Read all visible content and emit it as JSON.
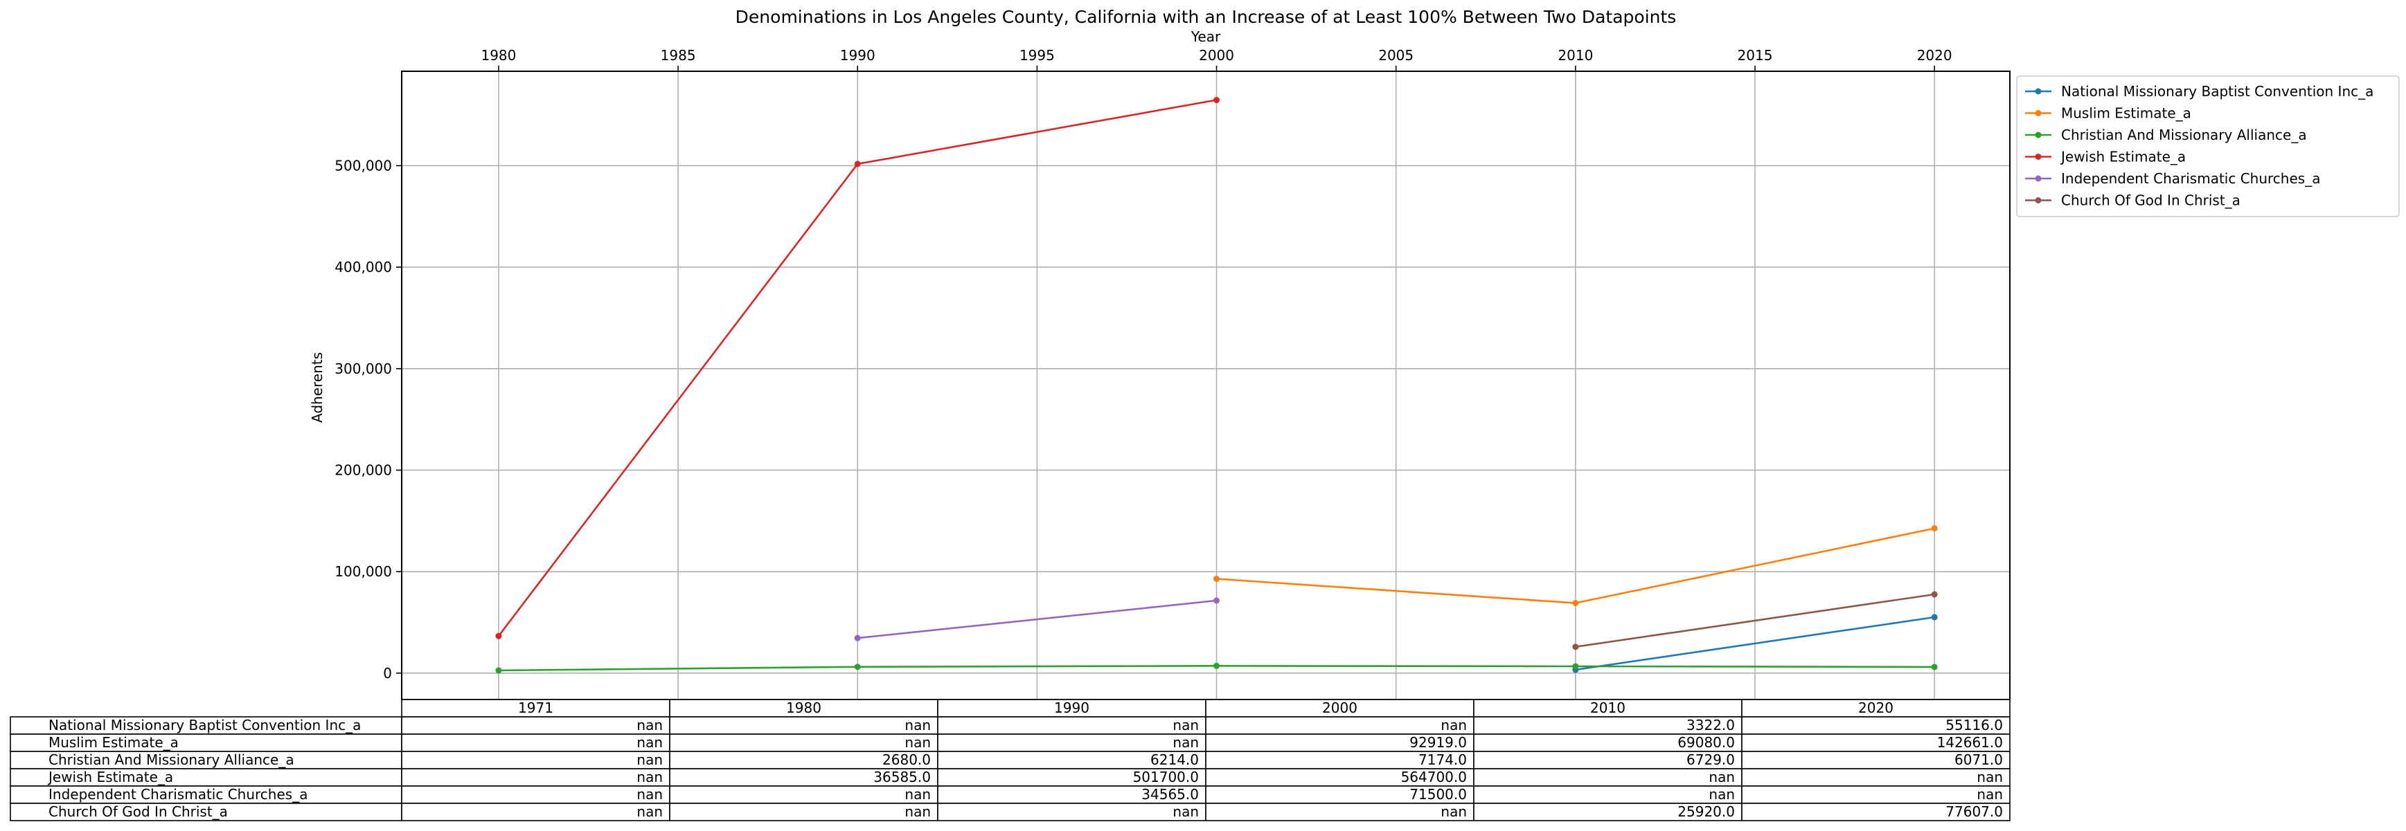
{
  "chart_data": {
    "type": "line",
    "title": "Denominations in Los Angeles County, California with an Increase of at Least 100% Between Two Datapoints",
    "xlabel": "Year",
    "ylabel": "Adherents",
    "xlim": [
      1977.3,
      2022.1
    ],
    "ylim": [
      -26000,
      593000
    ],
    "x_ticks": [
      "1980",
      "1985",
      "1990",
      "1995",
      "2000",
      "2005",
      "2010",
      "2015",
      "2020"
    ],
    "y_ticks": [
      "0",
      "100,000",
      "200,000",
      "300,000",
      "400,000",
      "500,000"
    ],
    "grid": true,
    "legend_position": "outside-right",
    "x": [
      1971,
      1980,
      1990,
      2000,
      2010,
      2020
    ],
    "series": [
      {
        "name": "National Missionary Baptist Convention Inc_a",
        "color": "#1f77b4",
        "values": [
          null,
          null,
          null,
          null,
          3322.0,
          55116.0
        ],
        "table_row": [
          "nan",
          "nan",
          "nan",
          "nan",
          "3322.0",
          "55116.0"
        ]
      },
      {
        "name": "Muslim Estimate_a",
        "color": "#ff7f0e",
        "values": [
          null,
          null,
          null,
          92919.0,
          69080.0,
          142661.0
        ],
        "table_row": [
          "nan",
          "nan",
          "nan",
          "92919.0",
          "69080.0",
          "142661.0"
        ]
      },
      {
        "name": "Christian And Missionary Alliance_a",
        "color": "#2ca02c",
        "values": [
          null,
          2680.0,
          6214.0,
          7174.0,
          6729.0,
          6071.0
        ],
        "table_row": [
          "nan",
          "2680.0",
          "6214.0",
          "7174.0",
          "6729.0",
          "6071.0"
        ]
      },
      {
        "name": "Jewish Estimate_a",
        "color": "#d62728",
        "values": [
          null,
          36585.0,
          501700.0,
          564700.0,
          null,
          null
        ],
        "table_row": [
          "nan",
          "36585.0",
          "501700.0",
          "564700.0",
          "nan",
          "nan"
        ]
      },
      {
        "name": "Independent Charismatic Churches_a",
        "color": "#9467bd",
        "values": [
          null,
          null,
          34565.0,
          71500.0,
          null,
          null
        ],
        "table_row": [
          "nan",
          "nan",
          "34565.0",
          "71500.0",
          "nan",
          "nan"
        ]
      },
      {
        "name": "Church Of God In Christ_a",
        "color": "#8c564b",
        "values": [
          null,
          null,
          null,
          null,
          25920.0,
          77607.0
        ],
        "table_row": [
          "nan",
          "nan",
          "nan",
          "nan",
          "25920.0",
          "77607.0"
        ]
      }
    ],
    "table": {
      "column_labels": [
        "1971",
        "1980",
        "1990",
        "2000",
        "2010",
        "2020"
      ]
    }
  }
}
